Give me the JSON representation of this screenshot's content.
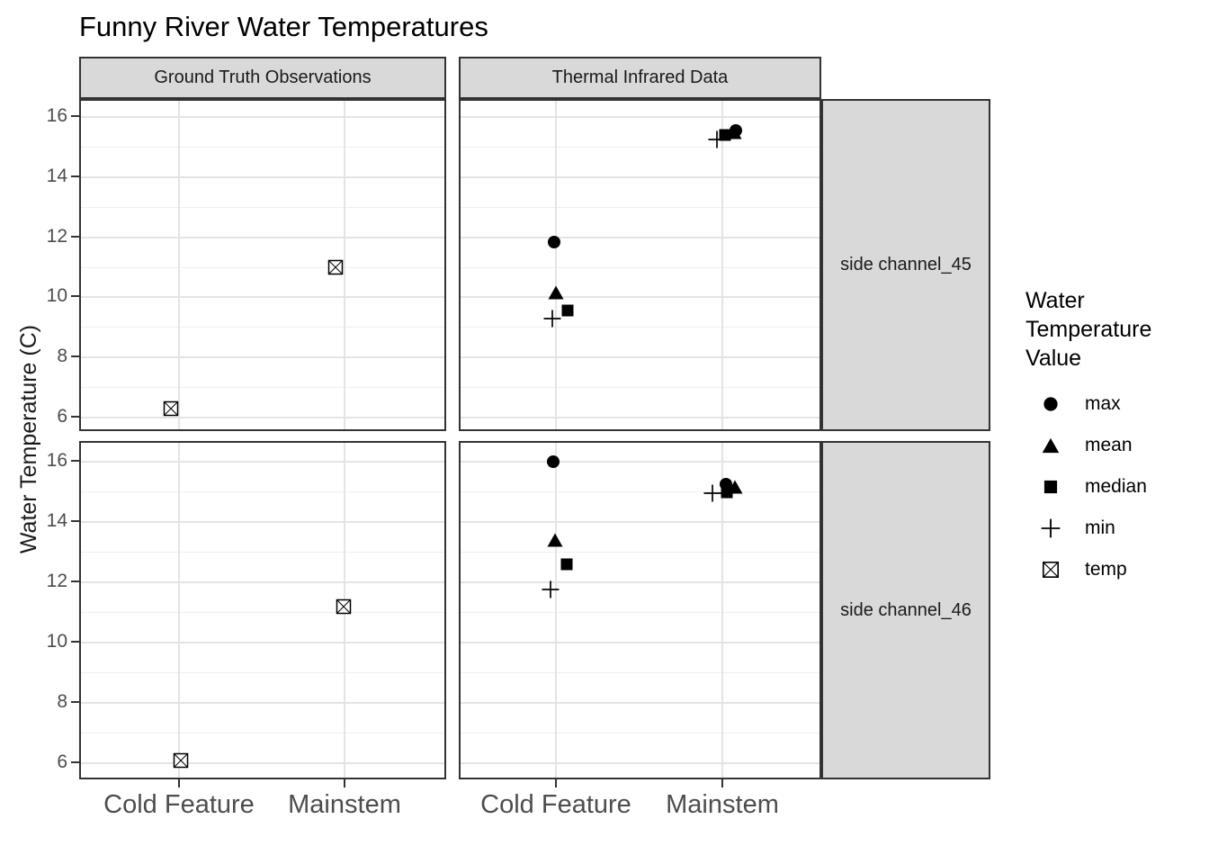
{
  "title": "Funny River Water Temperatures",
  "colors": {
    "background": "#ffffff",
    "strip_fill": "#D9D9D9",
    "panel_border": "#333333",
    "grid_major": "#E4E4E4",
    "grid_minor": "#EFEFEF",
    "axis_text": "#4d4d4d",
    "point": "#000000"
  },
  "facets": {
    "columns": [
      "Ground Truth Observations",
      "Thermal Infrared Data"
    ],
    "rows": [
      "side channel_45",
      "side channel_46"
    ]
  },
  "legend": {
    "title_lines": [
      "Water",
      "Temperature",
      "Value"
    ],
    "items": [
      {
        "label": "max",
        "shape": "circle"
      },
      {
        "label": "mean",
        "shape": "triangle"
      },
      {
        "label": "median",
        "shape": "square"
      },
      {
        "label": "min",
        "shape": "plus"
      },
      {
        "label": "temp",
        "shape": "cross-square"
      }
    ]
  },
  "chart_data": {
    "type": "scatter",
    "title": "Funny River Water Temperatures",
    "xlabel": "",
    "ylabel": "Water Temperature (C)",
    "categories": [
      "Cold Feature",
      "Mainstem"
    ],
    "yticks": [
      6,
      8,
      10,
      12,
      14,
      16
    ],
    "yticks_minor": [
      7,
      9,
      11,
      13,
      15
    ],
    "ylim": [
      5.5,
      16.7
    ],
    "grid": true,
    "legend_position": "right",
    "panels": [
      {
        "col": "Ground Truth Observations",
        "row": "side channel_45",
        "points": [
          {
            "x": "Cold Feature",
            "stat": "temp",
            "y": 6.3,
            "dx": -9
          },
          {
            "x": "Mainstem",
            "stat": "temp",
            "y": 11.0,
            "dx": -10
          }
        ]
      },
      {
        "col": "Thermal Infrared Data",
        "row": "side channel_45",
        "points": [
          {
            "x": "Cold Feature",
            "stat": "min",
            "y": 9.3,
            "dx": -4
          },
          {
            "x": "Cold Feature",
            "stat": "median",
            "y": 9.55,
            "dx": 13
          },
          {
            "x": "Cold Feature",
            "stat": "mean",
            "y": 10.15,
            "dx": 0
          },
          {
            "x": "Cold Feature",
            "stat": "max",
            "y": 11.85,
            "dx": -2
          },
          {
            "x": "Mainstem",
            "stat": "min",
            "y": 15.25,
            "dx": -6
          },
          {
            "x": "Mainstem",
            "stat": "median",
            "y": 15.4,
            "dx": 3
          },
          {
            "x": "Mainstem",
            "stat": "mean",
            "y": 15.5,
            "dx": 13
          },
          {
            "x": "Mainstem",
            "stat": "max",
            "y": 15.55,
            "dx": 15
          }
        ]
      },
      {
        "col": "Ground Truth Observations",
        "row": "side channel_46",
        "points": [
          {
            "x": "Cold Feature",
            "stat": "temp",
            "y": 6.1,
            "dx": 2
          },
          {
            "x": "Mainstem",
            "stat": "temp",
            "y": 11.2,
            "dx": -1
          }
        ]
      },
      {
        "col": "Thermal Infrared Data",
        "row": "side channel_46",
        "points": [
          {
            "x": "Cold Feature",
            "stat": "min",
            "y": 11.75,
            "dx": -6
          },
          {
            "x": "Cold Feature",
            "stat": "median",
            "y": 12.6,
            "dx": 12
          },
          {
            "x": "Cold Feature",
            "stat": "mean",
            "y": 13.4,
            "dx": -1
          },
          {
            "x": "Cold Feature",
            "stat": "max",
            "y": 16.0,
            "dx": -3
          },
          {
            "x": "Mainstem",
            "stat": "min",
            "y": 14.95,
            "dx": -11
          },
          {
            "x": "Mainstem",
            "stat": "median",
            "y": 15.0,
            "dx": 5
          },
          {
            "x": "Mainstem",
            "stat": "max",
            "y": 15.25,
            "dx": 4
          },
          {
            "x": "Mainstem",
            "stat": "mean",
            "y": 15.15,
            "dx": 14
          }
        ]
      }
    ]
  }
}
